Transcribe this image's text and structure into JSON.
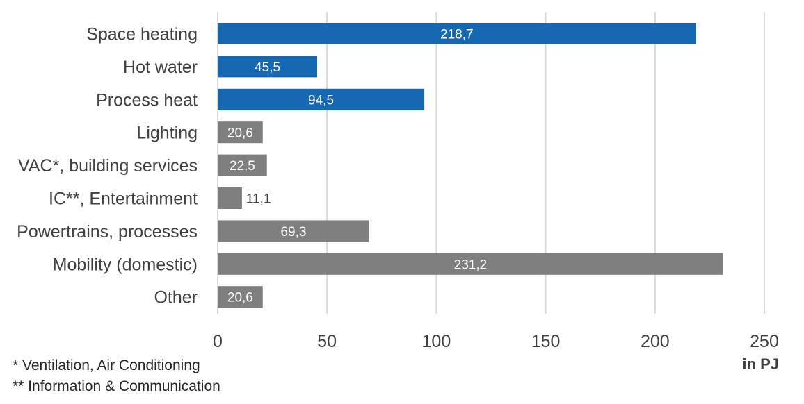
{
  "chart_data": {
    "type": "bar",
    "orientation": "horizontal",
    "categories": [
      "Space heating",
      "Hot water",
      "Process heat",
      "Lighting",
      "VAC*, building services",
      "IC**, Entertainment",
      "Powertrains, processes",
      "Mobility (domestic)",
      "Other"
    ],
    "values": [
      218.7,
      45.5,
      94.5,
      20.6,
      22.5,
      11.1,
      69.3,
      231.2,
      20.6
    ],
    "value_labels": [
      "218,7",
      "45,5",
      "94,5",
      "20,6",
      "22,5",
      "11,1",
      "69,3",
      "231,2",
      "20,6"
    ],
    "bar_colors": [
      "#1668b2",
      "#1668b2",
      "#1668b2",
      "#7f7f7f",
      "#7f7f7f",
      "#7f7f7f",
      "#7f7f7f",
      "#7f7f7f",
      "#7f7f7f"
    ],
    "x_ticks": [
      0,
      50,
      100,
      150,
      200,
      250
    ],
    "xlim": [
      0,
      250
    ],
    "unit_label": "in PJ",
    "grid": "vertical",
    "title": "",
    "xlabel": "",
    "ylabel": ""
  },
  "footnotes": {
    "vac": "* Ventilation, Air Conditioning",
    "ic": "** Information & Communication"
  },
  "colors": {
    "heat": "#1668b2",
    "other": "#7f7f7f",
    "grid": "#d9d9d9",
    "text": "#404040"
  }
}
